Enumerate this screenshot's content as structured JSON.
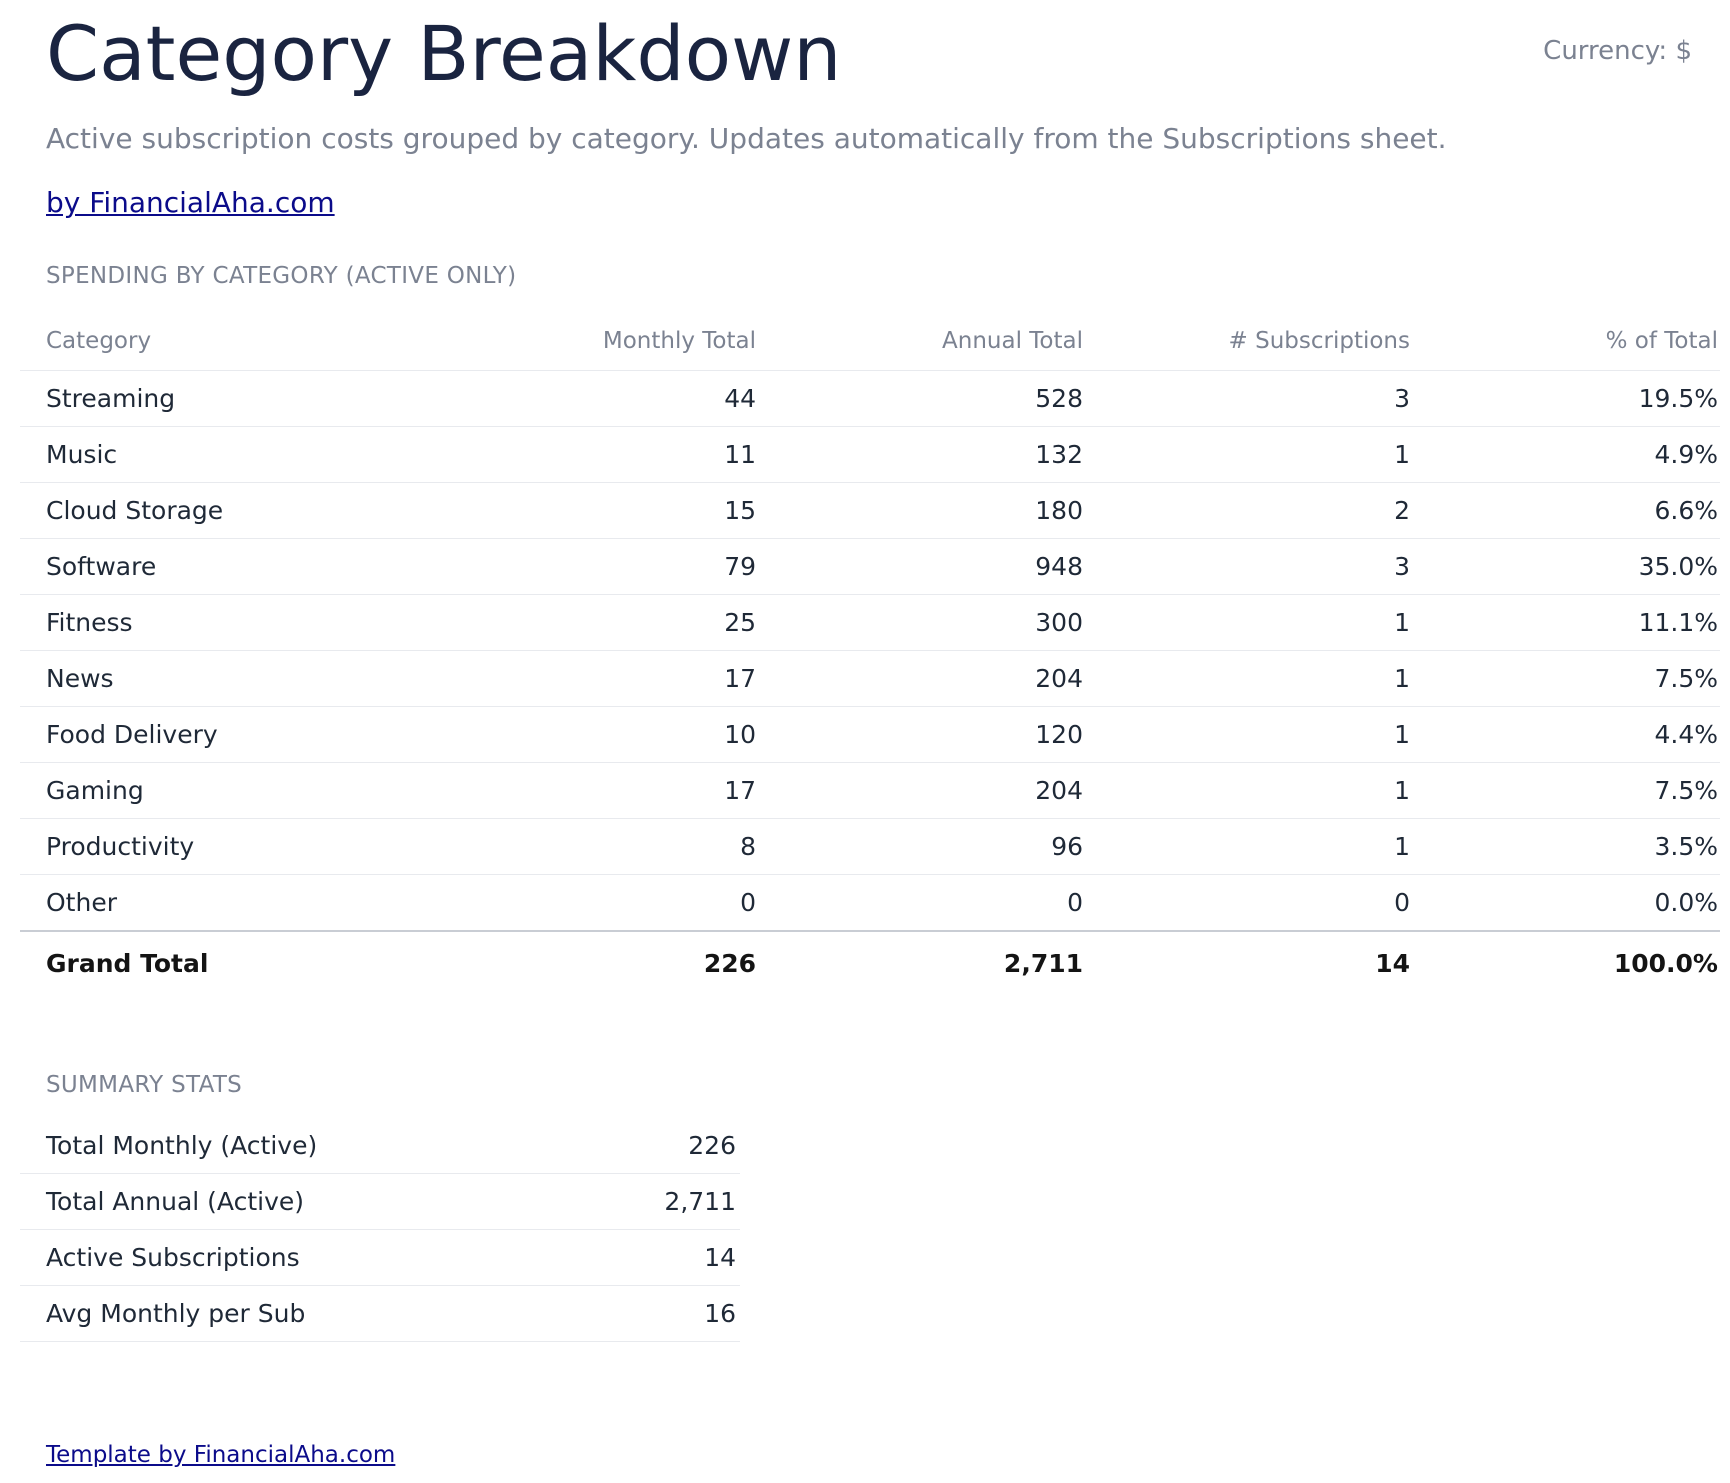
{
  "header": {
    "title": "Category Breakdown",
    "currency": "Currency: $",
    "subtitle": "Active subscription costs grouped by category. Updates automatically from the Subscriptions sheet.",
    "byline": "by FinancialAha.com"
  },
  "breakdown": {
    "section_label": "SPENDING BY CATEGORY (ACTIVE ONLY)",
    "columns": [
      "Category",
      "Monthly Total",
      "Annual Total",
      "# Subscriptions",
      "% of Total"
    ],
    "rows": [
      [
        "Streaming",
        "44",
        "528",
        "3",
        "19.5%"
      ],
      [
        "Music",
        "11",
        "132",
        "1",
        "4.9%"
      ],
      [
        "Cloud Storage",
        "15",
        "180",
        "2",
        "6.6%"
      ],
      [
        "Software",
        "79",
        "948",
        "3",
        "35.0%"
      ],
      [
        "Fitness",
        "25",
        "300",
        "1",
        "11.1%"
      ],
      [
        "News",
        "17",
        "204",
        "1",
        "7.5%"
      ],
      [
        "Food Delivery",
        "10",
        "120",
        "1",
        "4.4%"
      ],
      [
        "Gaming",
        "17",
        "204",
        "1",
        "7.5%"
      ],
      [
        "Productivity",
        "8",
        "96",
        "1",
        "3.5%"
      ],
      [
        "Other",
        "0",
        "0",
        "0",
        "0.0%"
      ]
    ],
    "total": [
      "Grand Total",
      "226",
      "2,711",
      "14",
      "100.0%"
    ]
  },
  "summary": {
    "section_label": "SUMMARY STATS",
    "rows": [
      [
        "Total Monthly (Active)",
        "226"
      ],
      [
        "Total Annual (Active)",
        "2,711"
      ],
      [
        "Active Subscriptions",
        "14"
      ],
      [
        "Avg Monthly per Sub",
        "16"
      ]
    ]
  },
  "footer": {
    "link": "Template by FinancialAha.com"
  },
  "colors": {
    "title": "#1a2440",
    "muted": "#7b8291",
    "link": "#0b0b8a",
    "text": "#1f2937"
  }
}
